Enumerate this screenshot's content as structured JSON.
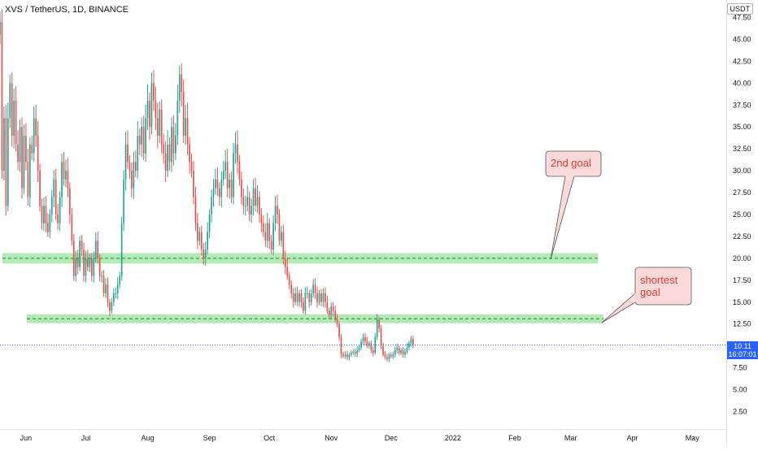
{
  "header": {
    "symbol": "XVS / TetherUS, 1D, BINANCE",
    "currency": "USDT"
  },
  "price_badge": {
    "price": "10.11",
    "countdown": "16:07:01"
  },
  "annotations": {
    "goal_2": "2nd goal",
    "goal_short": "shortest\ngoal"
  },
  "colors": {
    "up": "#26a69a",
    "down": "#ef5350",
    "zone_fill": "#a5e6a8",
    "zone_line": "#2e7d32",
    "price_line": "#2962ff",
    "callout_fill": "#fcd9d9",
    "callout_text": "#e53935",
    "axis_text": "#131722"
  },
  "chart_data": {
    "type": "candlestick",
    "title": "XVS / TetherUS, 1D, BINANCE",
    "currency": "USDT",
    "y_axis": {
      "ticks": [
        2.5,
        5,
        7.5,
        10,
        12.5,
        15,
        17.5,
        20,
        22.5,
        25,
        27.5,
        30,
        32.5,
        35,
        37.5,
        40,
        42.5,
        45,
        47.5
      ],
      "tick_labels": [
        "2.50",
        "5.00",
        "7.50",
        "10.00",
        "12.50",
        "15.00",
        "17.50",
        "20.00",
        "22.50",
        "25.00",
        "27.50",
        "30.00",
        "32.50",
        "35.00",
        "37.50",
        "40.00",
        "42.50",
        "45.00",
        "47.50"
      ],
      "range": [
        0.5,
        49.5
      ]
    },
    "x_axis": {
      "tick_labels": [
        "Jun",
        "Jul",
        "Aug",
        "Sep",
        "Oct",
        "Nov",
        "Dec",
        "2022",
        "Feb",
        "Mar",
        "Apr",
        "May"
      ],
      "tick_dates": [
        "2021-06-01",
        "2021-07-01",
        "2021-08-01",
        "2021-09-01",
        "2021-10-01",
        "2021-11-01",
        "2021-12-01",
        "2022-01-01",
        "2022-02-01",
        "2022-03-01",
        "2022-04-01",
        "2022-05-01"
      ],
      "range": [
        "2021-05-19",
        "2022-05-18"
      ]
    },
    "series": [
      {
        "start_date": "2021-05-19",
        "interval": "1D",
        "close": [
          47,
          30,
          36,
          26,
          36,
          40,
          34,
          38,
          33,
          31,
          35,
          28,
          34,
          31,
          27,
          33,
          32,
          36,
          34,
          30,
          26,
          24,
          26,
          24,
          23,
          25,
          27,
          29,
          25,
          24,
          27,
          31,
          29,
          30,
          28,
          25,
          22,
          18,
          20,
          19,
          22,
          21,
          18,
          20,
          19,
          20,
          18,
          20,
          22,
          20,
          18,
          18,
          16,
          17,
          15,
          14,
          15,
          16,
          16,
          17,
          18,
          24,
          29,
          33,
          31,
          30,
          28,
          31,
          30,
          34,
          33,
          35,
          32,
          36,
          38,
          35,
          40,
          38,
          36,
          34,
          37,
          33,
          32,
          30,
          33,
          31,
          35,
          32,
          34,
          38,
          41,
          39,
          34,
          36,
          33,
          31,
          30,
          27,
          24,
          22,
          23,
          21,
          20,
          21,
          23,
          25,
          27,
          28,
          29,
          28,
          27,
          29,
          30,
          31,
          28,
          29,
          27,
          32,
          33,
          31,
          29,
          27,
          26,
          26,
          27,
          25,
          26,
          28,
          26,
          27,
          25,
          24,
          23,
          22,
          24,
          22,
          21,
          24,
          26,
          25,
          22,
          23,
          20,
          19,
          18,
          17,
          16,
          15,
          16,
          15,
          16,
          15,
          14,
          16,
          16,
          15,
          16,
          17,
          16,
          15,
          16,
          15,
          16,
          15,
          14,
          13.5,
          14.5,
          14,
          13,
          12.5,
          11,
          9,
          8.8,
          9,
          8.7,
          9,
          9.2,
          9.3,
          9.1,
          9.5,
          9.8,
          10.5,
          11,
          10.5,
          10,
          10.3,
          9.5,
          9.2,
          11,
          13,
          12,
          10,
          9,
          8.7,
          8.5,
          9,
          8.8,
          9,
          9.5,
          9.8,
          9.2,
          9.5,
          9,
          9.3,
          9.8,
          10.3,
          10.8,
          10.11
        ]
      }
    ],
    "zones": [
      {
        "label": "support/resistance zone",
        "low": 19.4,
        "high": 20.6
      },
      {
        "label": "support/resistance zone",
        "low": 12.6,
        "high": 13.6
      }
    ],
    "annotations": [
      {
        "text": "2nd goal",
        "target_price": 20.2
      },
      {
        "text": "shortest goal",
        "target_price": 13.3
      }
    ],
    "last_price": 10.11,
    "last_price_countdown": "16:07:01",
    "grid": false,
    "legend": "none"
  }
}
